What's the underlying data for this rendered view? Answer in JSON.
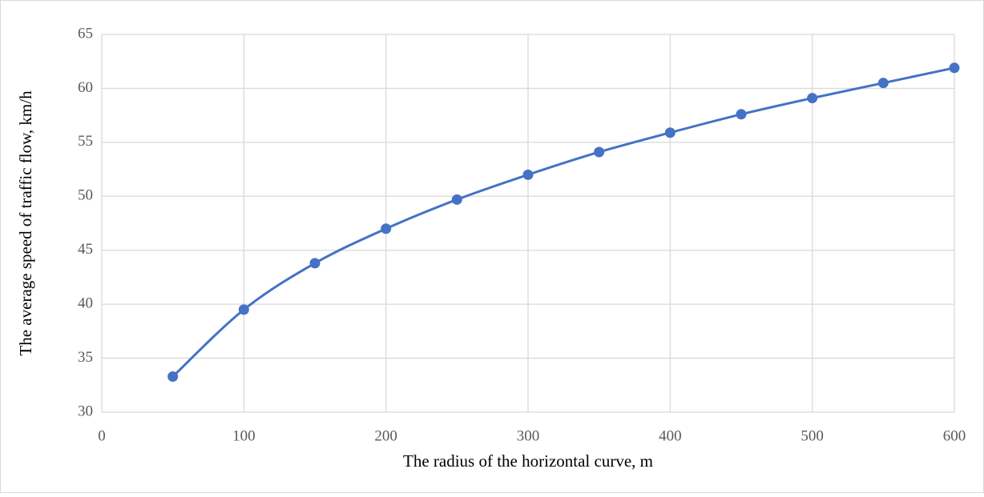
{
  "chart_data": {
    "type": "line",
    "x_label": "The radius of the horizontal curve, m",
    "y_label": "The average speed of traffic flow, km/h",
    "x": [
      50,
      100,
      150,
      200,
      250,
      300,
      350,
      400,
      450,
      500,
      550,
      600
    ],
    "series": [
      {
        "color": "#4472c4",
        "values": [
          33.3,
          39.5,
          43.8,
          47.0,
          49.7,
          52.0,
          54.1,
          55.9,
          57.6,
          59.1,
          60.5,
          61.9
        ]
      }
    ],
    "xlim": [
      0,
      600
    ],
    "xticks": [
      0,
      100,
      200,
      300,
      400,
      500,
      600
    ],
    "ylim": [
      30,
      65
    ],
    "yticks": [
      30,
      35,
      40,
      45,
      50,
      55,
      60,
      65
    ],
    "grid": true
  }
}
